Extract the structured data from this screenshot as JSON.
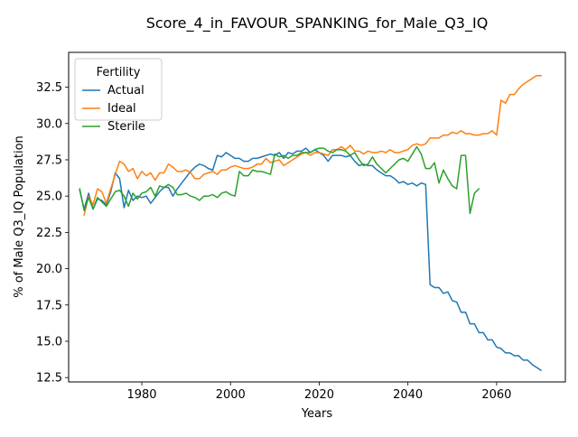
{
  "chart_data": {
    "type": "line",
    "title": "Score_4_in_FAVOUR_SPANKING_for_Male_Q3_IQ",
    "xlabel": "Years",
    "ylabel": "% of Male Q3_IQ Population",
    "xlim": [
      1963.5,
      2075.5
    ],
    "ylim": [
      12.2,
      34.9
    ],
    "x_ticks": [
      1980,
      2000,
      2020,
      2040,
      2060
    ],
    "x_tick_labels": [
      "1980",
      "2000",
      "2020",
      "2040",
      "2060"
    ],
    "y_ticks": [
      12.5,
      15.0,
      17.5,
      20.0,
      22.5,
      25.0,
      27.5,
      30.0,
      32.5
    ],
    "y_tick_labels": [
      "12.5",
      "15.0",
      "17.5",
      "20.0",
      "22.5",
      "25.0",
      "27.5",
      "30.0",
      "32.5"
    ],
    "grid": false,
    "legend": {
      "title": "Fertility",
      "placement": "top-left"
    },
    "series": [
      {
        "name": "Actual",
        "color": "#1f77b4",
        "x": [
          1966,
          1967,
          1968,
          1969,
          1970,
          1971,
          1972,
          1973,
          1974,
          1975,
          1976,
          1977,
          1978,
          1979,
          1980,
          1981,
          1982,
          1983,
          1984,
          1985,
          1986,
          1987,
          1988,
          1989,
          1990,
          1991,
          1992,
          1993,
          1994,
          1995,
          1996,
          1997,
          1998,
          1999,
          2000,
          2001,
          2002,
          2003,
          2004,
          2005,
          2006,
          2007,
          2008,
          2009,
          2010,
          2011,
          2012,
          2013,
          2014,
          2015,
          2016,
          2017,
          2018,
          2019,
          2020,
          2021,
          2022,
          2023,
          2024,
          2025,
          2026,
          2027,
          2028,
          2029,
          2030,
          2031,
          2032,
          2033,
          2034,
          2035,
          2036,
          2037,
          2038,
          2039,
          2040,
          2041,
          2042,
          2043,
          2044,
          2045,
          2046,
          2047,
          2048,
          2049,
          2050,
          2051,
          2052,
          2053,
          2054,
          2055,
          2056,
          2057,
          2058,
          2059,
          2060,
          2061,
          2062,
          2063,
          2064,
          2065,
          2066,
          2067,
          2068,
          2069,
          2070
        ],
        "y": [
          25.4,
          24.1,
          25.2,
          24.1,
          24.8,
          24.7,
          24.4,
          25.3,
          26.6,
          26.2,
          24.2,
          25.4,
          24.7,
          25.0,
          24.9,
          25.0,
          24.5,
          24.9,
          25.3,
          25.6,
          25.6,
          25.0,
          25.5,
          25.9,
          26.3,
          26.7,
          27.0,
          27.2,
          27.1,
          26.9,
          26.8,
          27.8,
          27.7,
          28.0,
          27.8,
          27.6,
          27.6,
          27.4,
          27.4,
          27.6,
          27.6,
          27.7,
          27.8,
          27.9,
          27.8,
          28.0,
          27.6,
          28.0,
          27.9,
          28.1,
          28.1,
          28.3,
          28.0,
          28.2,
          28.0,
          27.8,
          27.4,
          27.8,
          27.8,
          27.8,
          27.7,
          27.8,
          27.4,
          27.1,
          27.2,
          27.1,
          27.1,
          26.8,
          26.6,
          26.4,
          26.4,
          26.2,
          25.9,
          26.0,
          25.8,
          25.9,
          25.7,
          25.9,
          25.8,
          18.9,
          18.7,
          18.7,
          18.3,
          18.4,
          17.8,
          17.7,
          17.0,
          17.0,
          16.2,
          16.2,
          15.6,
          15.6,
          15.1,
          15.1,
          14.6,
          14.5,
          14.2,
          14.2,
          14.0,
          14.0,
          13.7,
          13.7,
          13.4,
          13.2,
          13.0
        ]
      },
      {
        "name": "Ideal",
        "color": "#ff7f0e",
        "x": [
          1967,
          1968,
          1969,
          1970,
          1971,
          1972,
          1973,
          1974,
          1975,
          1976,
          1977,
          1978,
          1979,
          1980,
          1981,
          1982,
          1983,
          1984,
          1985,
          1986,
          1987,
          1988,
          1989,
          1990,
          1991,
          1992,
          1993,
          1994,
          1995,
          1996,
          1997,
          1998,
          1999,
          2000,
          2001,
          2002,
          2003,
          2004,
          2005,
          2006,
          2007,
          2008,
          2009,
          2010,
          2011,
          2012,
          2013,
          2014,
          2015,
          2016,
          2017,
          2018,
          2019,
          2020,
          2021,
          2022,
          2023,
          2024,
          2025,
          2026,
          2027,
          2028,
          2029,
          2030,
          2031,
          2032,
          2033,
          2034,
          2035,
          2036,
          2037,
          2038,
          2039,
          2040,
          2041,
          2042,
          2043,
          2044,
          2045,
          2046,
          2047,
          2048,
          2049,
          2050,
          2051,
          2052,
          2053,
          2054,
          2055,
          2056,
          2057,
          2058,
          2059,
          2060,
          2061,
          2062,
          2063,
          2064,
          2065,
          2066,
          2067,
          2068,
          2069,
          2070
        ],
        "y": [
          23.7,
          25.0,
          24.4,
          25.5,
          25.3,
          24.5,
          25.5,
          26.5,
          27.4,
          27.2,
          26.7,
          26.9,
          26.2,
          26.7,
          26.4,
          26.6,
          26.1,
          26.6,
          26.6,
          27.2,
          27.0,
          26.7,
          26.7,
          26.8,
          26.6,
          26.2,
          26.2,
          26.5,
          26.6,
          26.7,
          26.5,
          26.8,
          26.8,
          27.0,
          27.1,
          27.0,
          26.9,
          26.9,
          27.0,
          27.2,
          27.2,
          27.6,
          27.3,
          27.4,
          27.5,
          27.1,
          27.3,
          27.5,
          27.7,
          27.9,
          28.0,
          27.8,
          28.0,
          28.0,
          27.9,
          27.8,
          28.2,
          28.2,
          28.4,
          28.2,
          28.5,
          28.1,
          28.1,
          27.9,
          28.1,
          28.0,
          28.0,
          28.1,
          28.0,
          28.2,
          28.0,
          28.0,
          28.1,
          28.2,
          28.5,
          28.6,
          28.5,
          28.6,
          29.0,
          29.0,
          29.0,
          29.2,
          29.2,
          29.4,
          29.3,
          29.5,
          29.3,
          29.3,
          29.2,
          29.2,
          29.3,
          29.3,
          29.5,
          29.2,
          31.6,
          31.4,
          32.0,
          32.0,
          32.4,
          32.7,
          32.9,
          33.1,
          33.3,
          33.3
        ]
      },
      {
        "name": "Sterile",
        "color": "#2ca02c",
        "x": [
          1966,
          1967,
          1968,
          1969,
          1970,
          1971,
          1972,
          1973,
          1974,
          1975,
          1976,
          1977,
          1978,
          1979,
          1980,
          1981,
          1982,
          1983,
          1984,
          1985,
          1986,
          1987,
          1988,
          1989,
          1990,
          1991,
          1992,
          1993,
          1994,
          1995,
          1996,
          1997,
          1998,
          1999,
          2000,
          2001,
          2002,
          2003,
          2004,
          2005,
          2006,
          2007,
          2008,
          2009,
          2010,
          2011,
          2012,
          2013,
          2014,
          2015,
          2016,
          2017,
          2018,
          2019,
          2020,
          2021,
          2022,
          2023,
          2024,
          2025,
          2026,
          2027,
          2028,
          2029,
          2030,
          2031,
          2032,
          2033,
          2034,
          2035,
          2036,
          2037,
          2038,
          2039,
          2040,
          2041,
          2042,
          2043,
          2044,
          2045,
          2046,
          2047,
          2048,
          2049,
          2050,
          2051,
          2052,
          2053,
          2054,
          2055,
          2056
        ],
        "y": [
          25.5,
          24.0,
          24.9,
          24.1,
          24.9,
          24.6,
          24.3,
          24.8,
          25.3,
          25.4,
          25.0,
          24.3,
          25.2,
          24.8,
          25.2,
          25.3,
          25.6,
          25.0,
          25.7,
          25.6,
          25.8,
          25.6,
          25.1,
          25.1,
          25.2,
          25.0,
          24.9,
          24.7,
          25.0,
          25.0,
          25.1,
          24.9,
          25.2,
          25.3,
          25.1,
          25.0,
          26.7,
          26.4,
          26.4,
          26.8,
          26.7,
          26.7,
          26.6,
          26.5,
          27.9,
          27.7,
          27.8,
          27.6,
          27.8,
          27.8,
          28.0,
          28.0,
          28.0,
          28.2,
          28.3,
          28.3,
          28.1,
          28.0,
          28.2,
          28.2,
          28.1,
          27.8,
          28.0,
          27.5,
          27.1,
          27.2,
          27.7,
          27.2,
          26.9,
          26.6,
          26.9,
          27.2,
          27.5,
          27.6,
          27.4,
          27.9,
          28.4,
          27.9,
          26.9,
          26.9,
          27.3,
          25.9,
          26.8,
          26.2,
          25.7,
          25.5,
          27.8,
          27.8,
          23.8,
          25.2,
          25.5
        ]
      }
    ]
  }
}
